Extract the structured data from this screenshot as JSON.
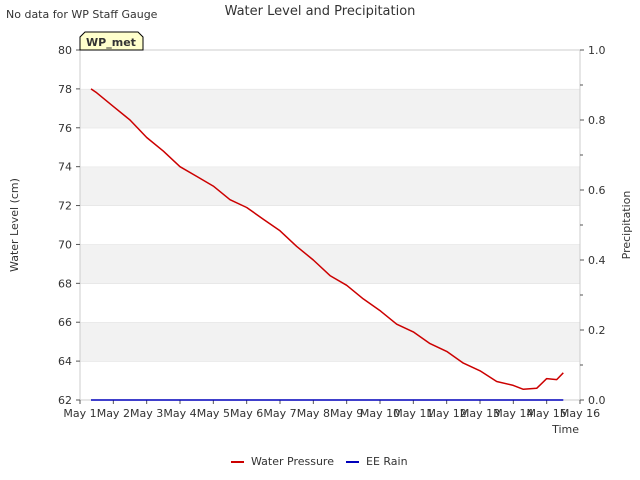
{
  "note": "No data for WP Staff Gauge",
  "chart_data": {
    "type": "line",
    "title": "Water Level and Precipitation",
    "station_label": "WP_met",
    "xlabel": "Time",
    "ylabel_left": "Water Level (cm)",
    "ylabel_right": "Precipitation",
    "x_ticks": [
      "May 1",
      "May 2",
      "May 3",
      "May 4",
      "May 5",
      "May 6",
      "May 7",
      "May 8",
      "May 9",
      "May 10",
      "May 11",
      "May 12",
      "May 13",
      "May 14",
      "May 15",
      "May 16"
    ],
    "xlim": [
      0,
      15
    ],
    "ylim_left": [
      62,
      80
    ],
    "y_ticks_left": [
      "62",
      "64",
      "66",
      "68",
      "70",
      "72",
      "74",
      "76",
      "78",
      "80"
    ],
    "ylim_right": [
      0,
      1.0
    ],
    "y_ticks_right": [
      "0.0",
      "0.2",
      "0.4",
      "0.6",
      "0.8",
      "1.0"
    ],
    "grid": "horizontal bands",
    "legend_position": "bottom-center",
    "series": [
      {
        "name": "Water Pressure",
        "color": "#cc0000",
        "axis": "left",
        "x": [
          0.33,
          0.5,
          1.0,
          1.5,
          2.0,
          2.5,
          3.0,
          3.5,
          4.0,
          4.5,
          5.0,
          5.5,
          6.0,
          6.5,
          7.0,
          7.5,
          8.0,
          8.5,
          9.0,
          9.5,
          10.0,
          10.5,
          11.0,
          11.5,
          12.0,
          12.5,
          13.0,
          13.3,
          13.7,
          14.0,
          14.3,
          14.5
        ],
        "y": [
          78.0,
          77.8,
          77.1,
          76.4,
          75.5,
          74.8,
          74.0,
          73.5,
          73.0,
          72.3,
          71.9,
          71.3,
          70.7,
          69.9,
          69.2,
          68.4,
          67.9,
          67.2,
          66.6,
          65.9,
          65.5,
          64.9,
          64.5,
          63.9,
          63.5,
          62.95,
          62.75,
          62.55,
          62.6,
          63.1,
          63.05,
          63.4
        ]
      },
      {
        "name": "EE Rain",
        "color": "#0000bb",
        "axis": "right",
        "x": [
          0.33,
          14.5
        ],
        "y": [
          0.0,
          0.0
        ]
      }
    ]
  }
}
